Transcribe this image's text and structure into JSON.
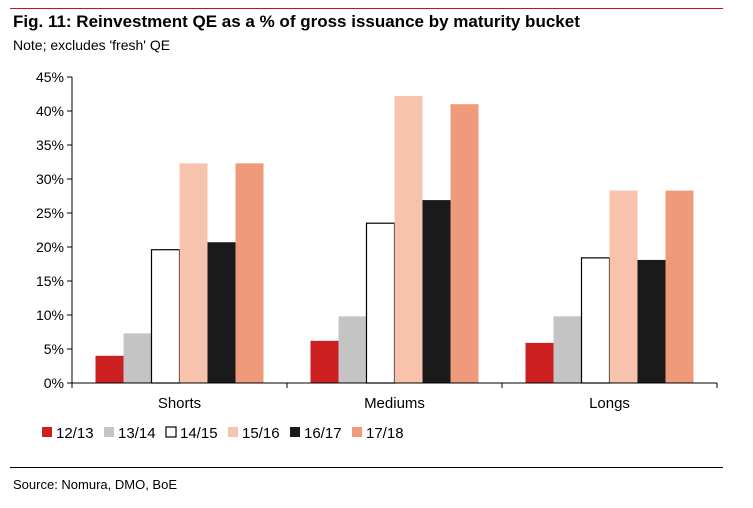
{
  "header": {
    "title": "Fig. 11: Reinvestment QE as a % of gross issuance by maturity bucket",
    "subtitle": "Note; excludes 'fresh'  QE"
  },
  "footer": {
    "source": "Source: Nomura, DMO, BoE"
  },
  "colors": {
    "accent_rule": "#c8102e"
  },
  "chart_data": {
    "type": "bar",
    "title": "Reinvestment QE as a % of gross issuance by maturity bucket",
    "xlabel": "",
    "ylabel": "",
    "ylim": [
      0,
      45
    ],
    "yticks": [
      0,
      5,
      10,
      15,
      20,
      25,
      30,
      35,
      40,
      45
    ],
    "ytick_labels": [
      "0%",
      "5%",
      "10%",
      "15%",
      "20%",
      "25%",
      "30%",
      "35%",
      "40%",
      "45%"
    ],
    "grid": false,
    "legend_position": "bottom-left",
    "categories": [
      "Shorts",
      "Mediums",
      "Longs"
    ],
    "series": [
      {
        "name": "12/13",
        "values": [
          4.0,
          6.2,
          5.9
        ],
        "fill": "#cc1f1f",
        "stroke": "#cc1f1f"
      },
      {
        "name": "13/14",
        "values": [
          7.3,
          9.8,
          9.8
        ],
        "fill": "#c4c4c4",
        "stroke": "#c4c4c4"
      },
      {
        "name": "14/15",
        "values": [
          19.6,
          23.5,
          18.4
        ],
        "fill": "#ffffff",
        "stroke": "#000000"
      },
      {
        "name": "15/16",
        "values": [
          32.3,
          42.2,
          28.3
        ],
        "fill": "#f7c3ad",
        "stroke": "#f7c3ad"
      },
      {
        "name": "16/17",
        "values": [
          20.7,
          26.9,
          18.1
        ],
        "fill": "#1a1a1a",
        "stroke": "#1a1a1a"
      },
      {
        "name": "17/18",
        "values": [
          32.3,
          41.0,
          28.3
        ],
        "fill": "#ef9a7a",
        "stroke": "#ef9a7a"
      }
    ]
  }
}
